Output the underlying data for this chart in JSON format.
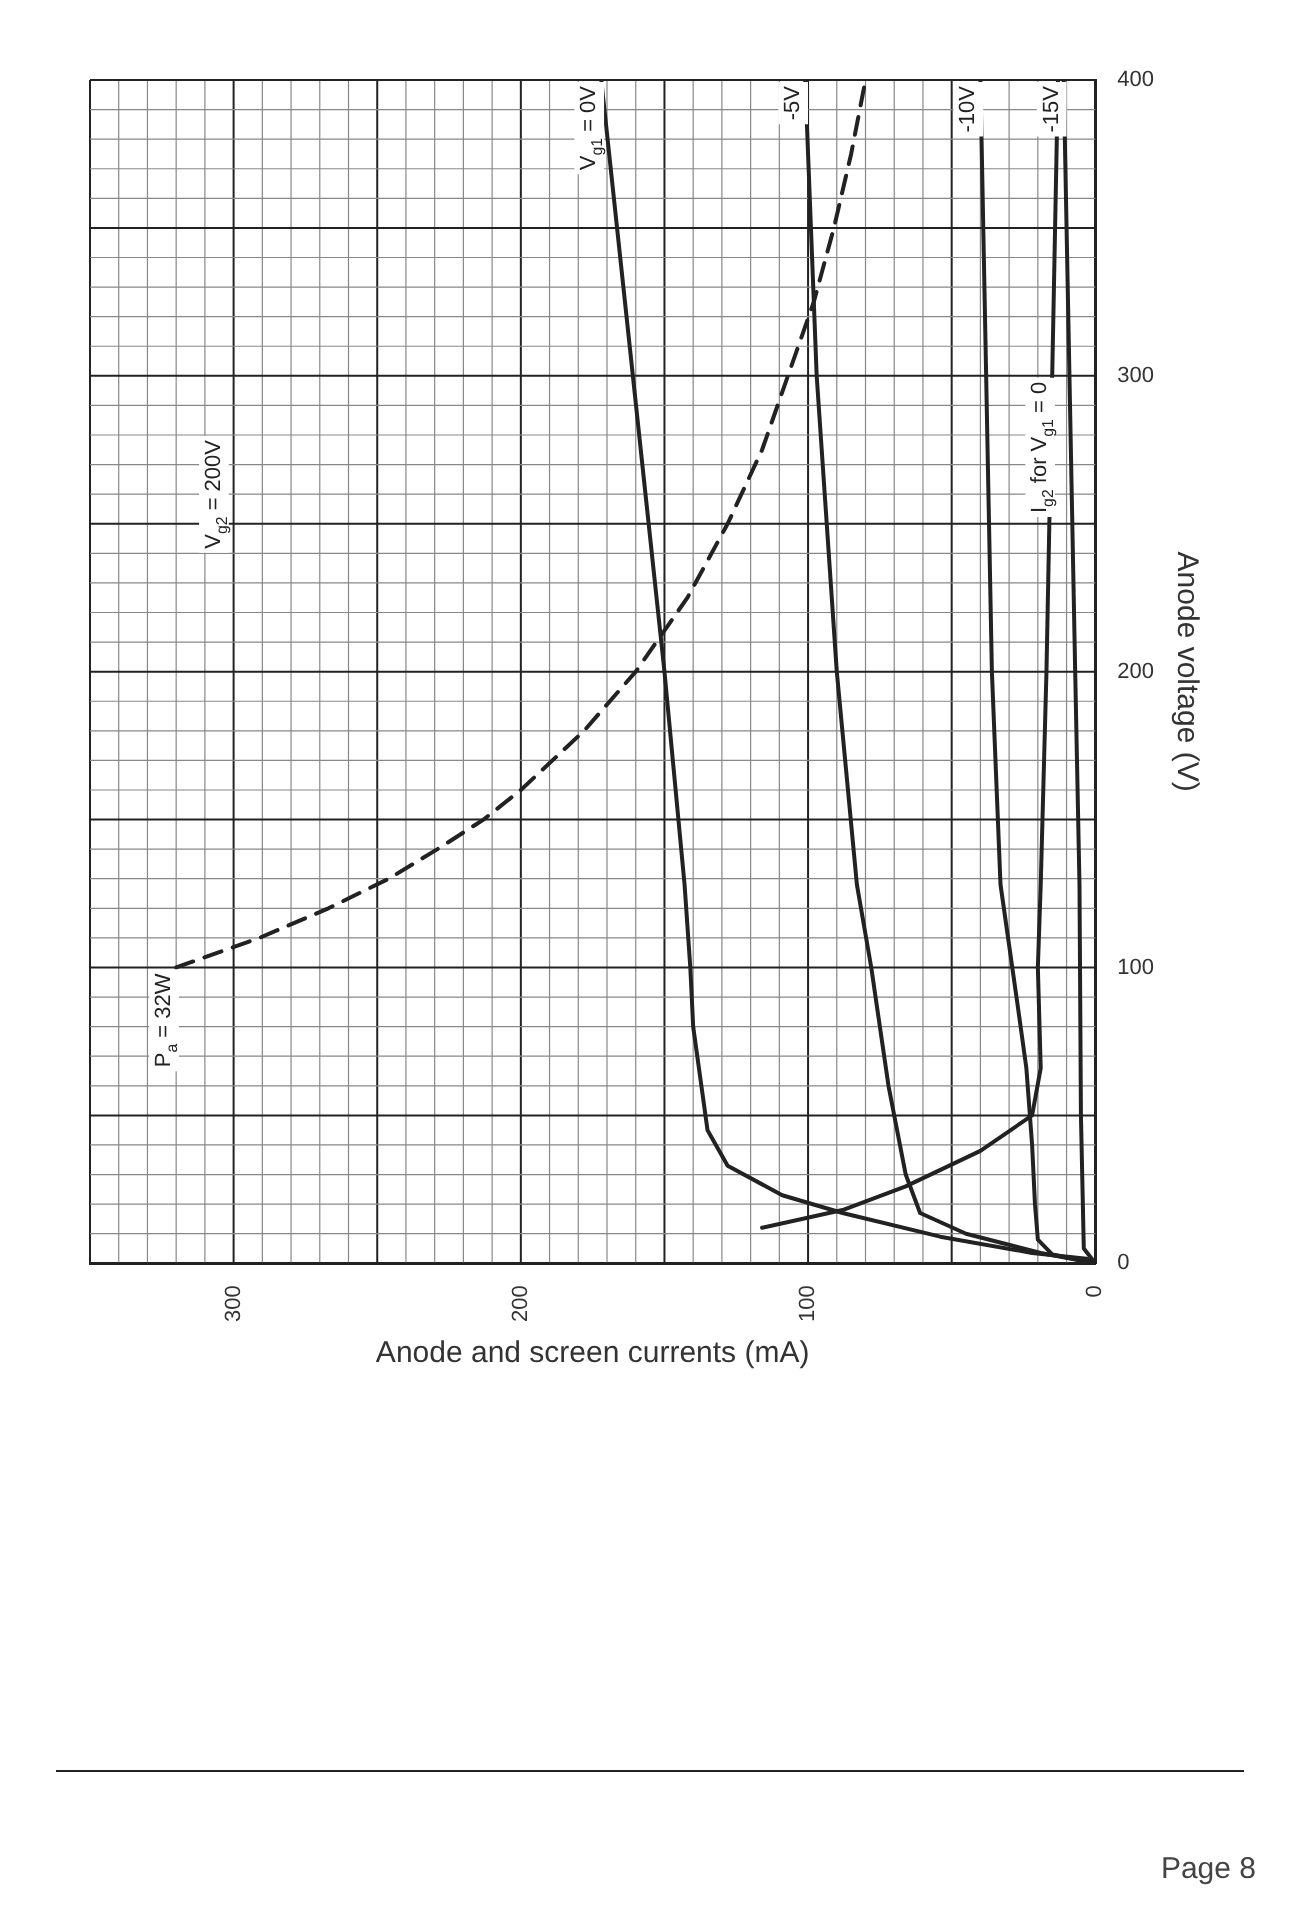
{
  "chart_data": {
    "type": "line",
    "subtitle": "V$_{g2}$ = 200V",
    "xlabel": "Anode and screen currents (mA)",
    "ylabel": "Anode voltage (V)",
    "xlim": [
      350,
      0
    ],
    "ylim": [
      0,
      400
    ],
    "xticks": [
      0,
      100,
      200,
      300
    ],
    "yticks": [
      0,
      100,
      200,
      300,
      400
    ],
    "grid": true,
    "legend": false,
    "marker": "none",
    "line_style": "solid",
    "series": [
      {
        "color": "#222222",
        "x": [
          0,
          3,
          22,
          54,
          88,
          109,
          128,
          135,
          137,
          140,
          141,
          143,
          150,
          161,
          172
        ],
        "values": [
          0,
          1.5,
          3.5,
          9,
          17,
          23,
          33,
          45,
          59,
          80,
          100,
          128,
          200,
          300,
          400
        ]
      },
      {
        "color": "#222222",
        "x": [
          0,
          19,
          45,
          61,
          66,
          72,
          78,
          83,
          90,
          97,
          101
        ],
        "values": [
          0,
          3.5,
          10,
          17,
          30,
          60,
          100,
          128,
          200,
          300,
          400
        ]
      },
      {
        "color": "#222222",
        "x": [
          0,
          15,
          20,
          21,
          22,
          24,
          27,
          33,
          36,
          38,
          40
        ],
        "values": [
          0,
          3,
          8,
          20,
          40,
          66,
          87,
          128,
          200,
          300,
          400
        ]
      },
      {
        "color": "#222222",
        "x": [
          0,
          4,
          5,
          5.5,
          7,
          9,
          11
        ],
        "values": [
          0,
          5,
          50,
          128,
          200,
          300,
          400
        ]
      },
      {
        "color": "#222222",
        "x": [
          116,
          88,
          66,
          40,
          22,
          19,
          20,
          19,
          17,
          15,
          13
        ],
        "values": [
          12,
          18,
          26,
          38,
          50,
          66,
          100,
          128,
          200,
          300,
          400
        ]
      },
      {
        "color": "#222222",
        "line_style": "dashed",
        "x": [
          320,
          291,
          267,
          246,
          229,
          213,
          200,
          178,
          160,
          142,
          128,
          116,
          107,
          98,
          91,
          85,
          80
        ],
        "values": [
          100,
          110,
          120,
          130,
          140,
          150,
          160,
          180,
          200,
          225,
          250,
          275,
          300,
          325,
          350,
          375,
          400
        ]
      }
    ],
    "annotations": [
      {
        "text": "V$_{g1}$ = 0V",
        "x": 172,
        "y": 400
      },
      {
        "text": "-5V",
        "x": 101,
        "y": 400
      },
      {
        "text": "-10V",
        "x": 40,
        "y": 400
      },
      {
        "text": "-15V",
        "x": 11,
        "y": 400
      },
      {
        "text": "P$_{a}$ = 32W",
        "x": 320,
        "y": 100
      },
      {
        "text": "I$_{g2}$ for V$_{g1}$ = 0",
        "x": 15,
        "y": 300
      },
      "Page 8"
    ]
  }
}
